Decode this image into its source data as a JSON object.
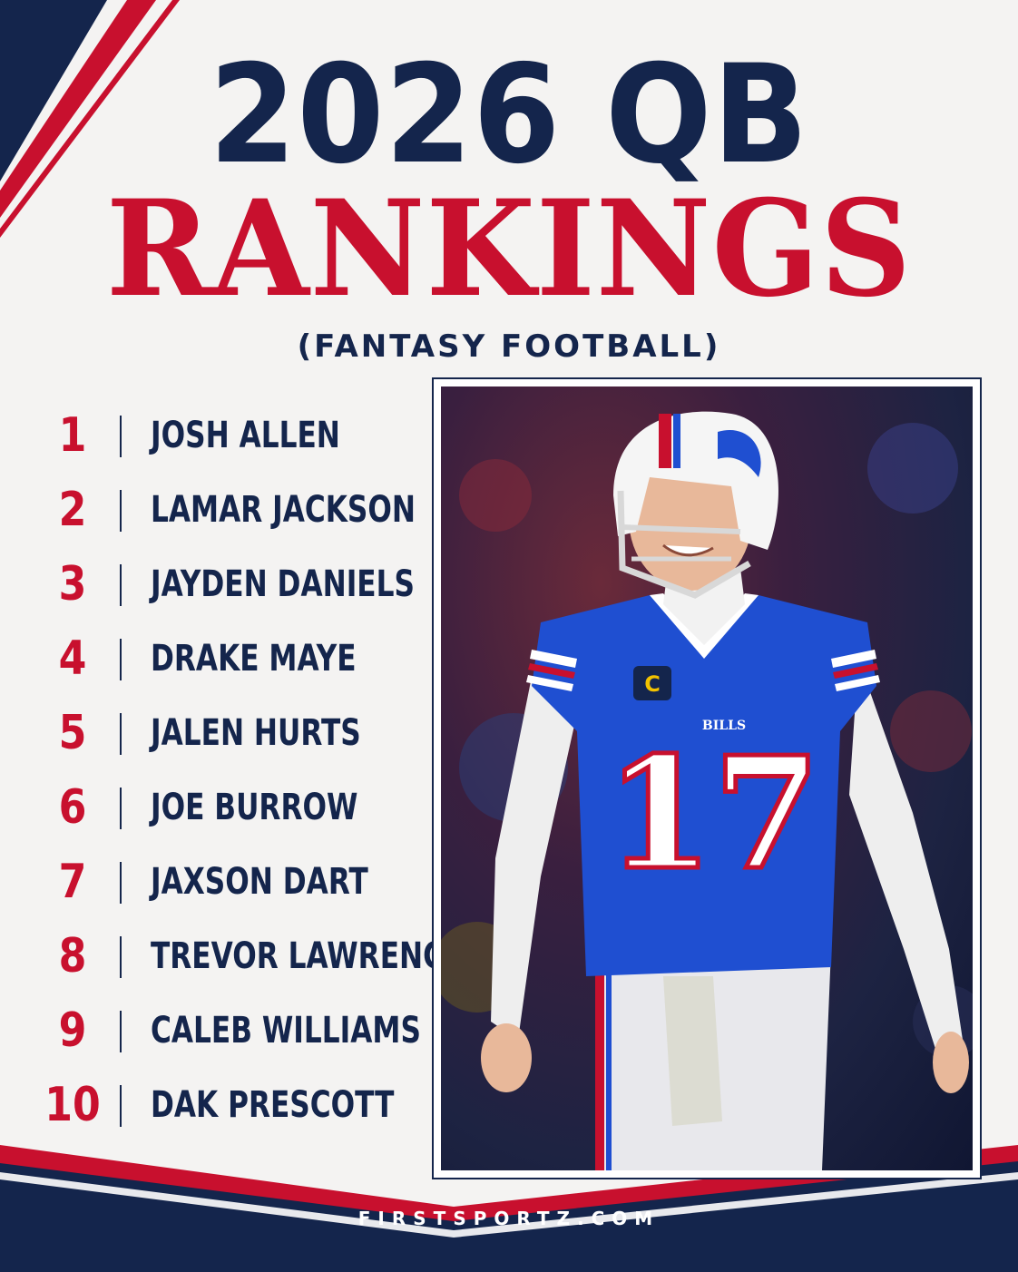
{
  "header": {
    "title_line1": "2026 QB",
    "title_line2": "RANKINGS",
    "subtitle": "(FANTASY FOOTBALL)"
  },
  "rankings": [
    {
      "rank": "1",
      "name": "JOSH ALLEN"
    },
    {
      "rank": "2",
      "name": "LAMAR JACKSON"
    },
    {
      "rank": "3",
      "name": "JAYDEN DANIELS"
    },
    {
      "rank": "4",
      "name": "DRAKE MAYE"
    },
    {
      "rank": "5",
      "name": "JALEN HURTS"
    },
    {
      "rank": "6",
      "name": "JOE BURROW"
    },
    {
      "rank": "7",
      "name": "JAXSON DART"
    },
    {
      "rank": "8",
      "name": "TREVOR LAWRENCE"
    },
    {
      "rank": "9",
      "name": "CALEB WILLIAMS"
    },
    {
      "rank": "10",
      "name": "DAK PRESCOTT"
    }
  ],
  "photo": {
    "jersey_team": "BILLS",
    "jersey_number": "17",
    "captain_patch": "C"
  },
  "footer": {
    "website": "FIRSTSPORTZ.COM"
  },
  "colors": {
    "navy": "#14254c",
    "red": "#c8102e",
    "background": "#f4f3f2",
    "jersey_blue": "#1f4fd1"
  }
}
